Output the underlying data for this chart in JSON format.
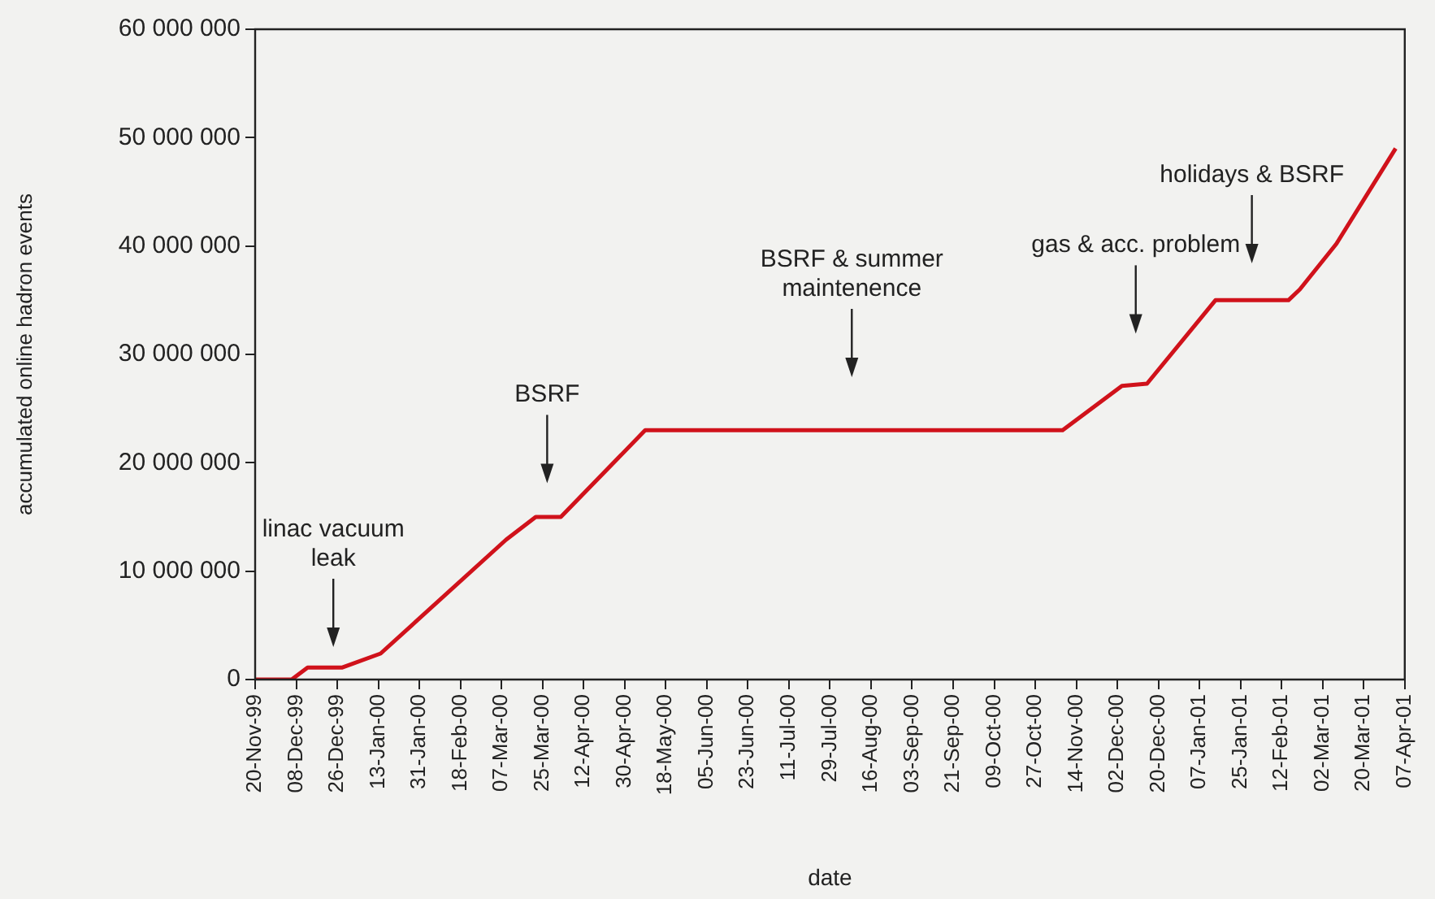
{
  "chart_data": {
    "type": "line",
    "xlabel": "date",
    "ylabel": "accumulated online hadron events",
    "x": [
      "1999-11-20",
      "1999-12-06",
      "1999-12-13",
      "1999-12-28",
      "2000-01-14",
      "2000-03-09",
      "2000-03-22",
      "2000-04-02",
      "2000-05-09",
      "2000-11-08",
      "2000-12-04",
      "2000-12-15",
      "2001-01-14",
      "2001-02-15",
      "2001-02-20",
      "2001-03-08",
      "2001-04-03"
    ],
    "series": [
      {
        "color": "#d0121b",
        "values": [
          0,
          0,
          1100000,
          1100000,
          2400000,
          12900000,
          15000000,
          15000000,
          23000000,
          23000000,
          27100000,
          27300000,
          35000000,
          35000000,
          36000000,
          40200000,
          49000000
        ]
      }
    ],
    "xlim": [
      "1999-11-20",
      "2001-04-07"
    ],
    "xticks": [
      {
        "value": "1999-11-20",
        "label": "20-Nov-99"
      },
      {
        "value": "1999-12-08",
        "label": "08-Dec-99"
      },
      {
        "value": "1999-12-26",
        "label": "26-Dec-99"
      },
      {
        "value": "2000-01-13",
        "label": "13-Jan-00"
      },
      {
        "value": "2000-01-31",
        "label": "31-Jan-00"
      },
      {
        "value": "2000-02-18",
        "label": "18-Feb-00"
      },
      {
        "value": "2000-03-07",
        "label": "07-Mar-00"
      },
      {
        "value": "2000-03-25",
        "label": "25-Mar-00"
      },
      {
        "value": "2000-04-12",
        "label": "12-Apr-00"
      },
      {
        "value": "2000-04-30",
        "label": "30-Apr-00"
      },
      {
        "value": "2000-05-18",
        "label": "18-May-00"
      },
      {
        "value": "2000-06-05",
        "label": "05-Jun-00"
      },
      {
        "value": "2000-06-23",
        "label": "23-Jun-00"
      },
      {
        "value": "2000-07-11",
        "label": "11-Jul-00"
      },
      {
        "value": "2000-07-29",
        "label": "29-Jul-00"
      },
      {
        "value": "2000-08-16",
        "label": "16-Aug-00"
      },
      {
        "value": "2000-09-03",
        "label": "03-Sep-00"
      },
      {
        "value": "2000-09-21",
        "label": "21-Sep-00"
      },
      {
        "value": "2000-10-09",
        "label": "09-Oct-00"
      },
      {
        "value": "2000-10-27",
        "label": "27-Oct-00"
      },
      {
        "value": "2000-11-14",
        "label": "14-Nov-00"
      },
      {
        "value": "2000-12-02",
        "label": "02-Dec-00"
      },
      {
        "value": "2000-12-20",
        "label": "20-Dec-00"
      },
      {
        "value": "2001-01-07",
        "label": "07-Jan-01"
      },
      {
        "value": "2001-01-25",
        "label": "25-Jan-01"
      },
      {
        "value": "2001-02-12",
        "label": "12-Feb-01"
      },
      {
        "value": "2001-03-02",
        "label": "02-Mar-01"
      },
      {
        "value": "2001-03-20",
        "label": "20-Mar-01"
      },
      {
        "value": "2001-04-07",
        "label": "07-Apr-01"
      }
    ],
    "ylim": [
      0,
      60000000
    ],
    "yticks": [
      0,
      {
        "value": 10000000,
        "label": "10 000 000"
      },
      {
        "value": 20000000,
        "label": "20 000 000"
      },
      {
        "value": 30000000,
        "label": "30 000 000"
      },
      {
        "value": 40000000,
        "label": "40 000 000"
      },
      {
        "value": 50000000,
        "label": "50 000 000"
      },
      {
        "value": 60000000,
        "label": "60 000 000"
      }
    ],
    "annotations": [
      "linac vacuum\nleak",
      "BSRF",
      "BSRF & summer\nmaintenence",
      "gas & acc. problem",
      "holidays & BSRF"
    ],
    "grid": false,
    "legend": false,
    "marker": "none",
    "line_style": "solid"
  }
}
